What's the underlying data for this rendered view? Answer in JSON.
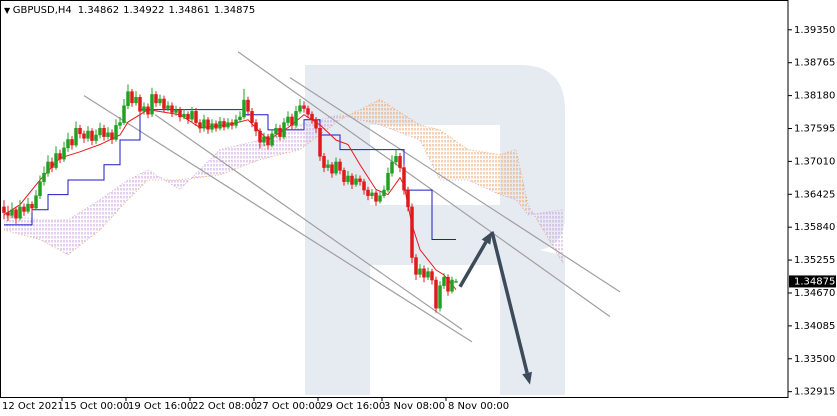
{
  "chart_data": {
    "type": "candlestick",
    "symbol": "GBPUSD,H4",
    "categories": [
      "12 Oct 2021",
      null,
      null,
      null,
      null,
      null,
      null,
      null,
      null,
      null,
      null,
      null,
      null,
      null,
      null,
      "15 Oct 00:00",
      null,
      null,
      null,
      null,
      null,
      null,
      null,
      null,
      null,
      null,
      null,
      null,
      null,
      null,
      null,
      "19 Oct 16:00",
      null,
      null,
      null,
      null,
      null,
      null,
      null,
      null,
      null,
      null,
      null,
      null,
      null,
      null,
      null,
      "22 Oct 08:00",
      null,
      null,
      null,
      null,
      null,
      null,
      null,
      null,
      null,
      null,
      null,
      null,
      null,
      null,
      null,
      "27 Oct 00:00",
      null,
      null,
      null,
      null,
      null,
      null,
      null,
      null,
      null,
      null,
      null,
      null,
      null,
      null,
      null,
      "29 Oct 16:00",
      null,
      null,
      null,
      null,
      null,
      null,
      null,
      null,
      null,
      null,
      null,
      null,
      null,
      null,
      null,
      "3 Nov 08:00",
      null,
      null,
      null,
      null,
      null,
      null,
      null,
      null,
      null,
      null,
      null,
      null,
      null,
      null,
      null,
      "8 Nov 00:00",
      null,
      null
    ],
    "ohlc": [
      [
        1.362,
        1.3632,
        1.3598,
        1.361
      ],
      [
        1.361,
        1.3622,
        1.3595,
        1.3605
      ],
      [
        1.3605,
        1.3628,
        1.36,
        1.3615
      ],
      [
        1.3615,
        1.362,
        1.359,
        1.36
      ],
      [
        1.36,
        1.3632,
        1.3596,
        1.362
      ],
      [
        1.362,
        1.3626,
        1.3604,
        1.3612
      ],
      [
        1.3612,
        1.3636,
        1.3608,
        1.3625
      ],
      [
        1.3625,
        1.363,
        1.361,
        1.3618
      ],
      [
        1.3618,
        1.365,
        1.3614,
        1.364
      ],
      [
        1.364,
        1.3676,
        1.3634,
        1.3665
      ],
      [
        1.3665,
        1.3692,
        1.3658,
        1.368
      ],
      [
        1.368,
        1.3712,
        1.3674,
        1.37
      ],
      [
        1.37,
        1.3708,
        1.3682,
        1.369
      ],
      [
        1.369,
        1.3728,
        1.3686,
        1.3715
      ],
      [
        1.3715,
        1.3722,
        1.3698,
        1.3705
      ],
      [
        1.3705,
        1.3736,
        1.37,
        1.3725
      ],
      [
        1.3725,
        1.3752,
        1.3718,
        1.374
      ],
      [
        1.374,
        1.3746,
        1.3722,
        1.373
      ],
      [
        1.373,
        1.3772,
        1.3726,
        1.376
      ],
      [
        1.376,
        1.3766,
        1.3742,
        1.375
      ],
      [
        1.375,
        1.3756,
        1.3734,
        1.3742
      ],
      [
        1.3742,
        1.3764,
        1.3736,
        1.3755
      ],
      [
        1.3755,
        1.376,
        1.373,
        1.3738
      ],
      [
        1.3738,
        1.3758,
        1.3732,
        1.3748
      ],
      [
        1.3748,
        1.377,
        1.3742,
        1.376
      ],
      [
        1.376,
        1.3766,
        1.3738,
        1.3745
      ],
      [
        1.3745,
        1.3762,
        1.374,
        1.3752
      ],
      [
        1.3752,
        1.3758,
        1.3732,
        1.374
      ],
      [
        1.374,
        1.3776,
        1.3736,
        1.3765
      ],
      [
        1.3765,
        1.378,
        1.3758,
        1.377
      ],
      [
        1.377,
        1.3812,
        1.3766,
        1.38
      ],
      [
        1.38,
        1.3838,
        1.3794,
        1.3825
      ],
      [
        1.3825,
        1.383,
        1.3798,
        1.3805
      ],
      [
        1.3805,
        1.3826,
        1.38,
        1.3815
      ],
      [
        1.3815,
        1.382,
        1.3782,
        1.379
      ],
      [
        1.379,
        1.3806,
        1.3784,
        1.3798
      ],
      [
        1.3798,
        1.3804,
        1.3778,
        1.3785
      ],
      [
        1.3785,
        1.3832,
        1.378,
        1.382
      ],
      [
        1.382,
        1.3826,
        1.3798,
        1.3805
      ],
      [
        1.3805,
        1.382,
        1.38,
        1.3812
      ],
      [
        1.3812,
        1.3818,
        1.3788,
        1.3795
      ],
      [
        1.3795,
        1.3808,
        1.379,
        1.38
      ],
      [
        1.38,
        1.3806,
        1.378,
        1.3788
      ],
      [
        1.3788,
        1.38,
        1.3782,
        1.3792
      ],
      [
        1.3792,
        1.3798,
        1.3772,
        1.378
      ],
      [
        1.378,
        1.3794,
        1.3776,
        1.3785
      ],
      [
        1.3785,
        1.379,
        1.3768,
        1.3776
      ],
      [
        1.3776,
        1.3798,
        1.377,
        1.379
      ],
      [
        1.379,
        1.3796,
        1.3764,
        1.377
      ],
      [
        1.377,
        1.3776,
        1.3752,
        1.376
      ],
      [
        1.376,
        1.3784,
        1.3754,
        1.3775
      ],
      [
        1.3775,
        1.378,
        1.375,
        1.3758
      ],
      [
        1.3758,
        1.3776,
        1.3752,
        1.3768
      ],
      [
        1.3768,
        1.3774,
        1.3754,
        1.376
      ],
      [
        1.376,
        1.378,
        1.3756,
        1.3772
      ],
      [
        1.3772,
        1.3778,
        1.3756,
        1.3762
      ],
      [
        1.3762,
        1.3778,
        1.3758,
        1.377
      ],
      [
        1.377,
        1.3776,
        1.3758,
        1.3765
      ],
      [
        1.3765,
        1.3784,
        1.376,
        1.3775
      ],
      [
        1.3775,
        1.379,
        1.377,
        1.378
      ],
      [
        1.378,
        1.383,
        1.3776,
        1.381
      ],
      [
        1.381,
        1.3816,
        1.3782,
        1.379
      ],
      [
        1.379,
        1.3796,
        1.3762,
        1.377
      ],
      [
        1.377,
        1.3776,
        1.3746,
        1.3755
      ],
      [
        1.3755,
        1.376,
        1.3724,
        1.3735
      ],
      [
        1.3735,
        1.3752,
        1.3728,
        1.3745
      ],
      [
        1.3745,
        1.375,
        1.3722,
        1.373
      ],
      [
        1.373,
        1.3758,
        1.3726,
        1.375
      ],
      [
        1.375,
        1.3768,
        1.3744,
        1.376
      ],
      [
        1.376,
        1.3766,
        1.3738,
        1.3745
      ],
      [
        1.3745,
        1.3778,
        1.374,
        1.377
      ],
      [
        1.377,
        1.379,
        1.3764,
        1.378
      ],
      [
        1.378,
        1.3786,
        1.3758,
        1.3765
      ],
      [
        1.3765,
        1.38,
        1.376,
        1.379
      ],
      [
        1.379,
        1.3812,
        1.3786,
        1.38
      ],
      [
        1.38,
        1.3808,
        1.3788,
        1.3795
      ],
      [
        1.3795,
        1.38,
        1.3778,
        1.3785
      ],
      [
        1.3785,
        1.379,
        1.3768,
        1.3775
      ],
      [
        1.3775,
        1.378,
        1.3752,
        1.376
      ],
      [
        1.376,
        1.3766,
        1.3702,
        1.371
      ],
      [
        1.371,
        1.3716,
        1.3682,
        1.369
      ],
      [
        1.369,
        1.3704,
        1.3684,
        1.3695
      ],
      [
        1.3695,
        1.37,
        1.3672,
        1.368
      ],
      [
        1.368,
        1.3708,
        1.3676,
        1.37
      ],
      [
        1.37,
        1.3706,
        1.3678,
        1.3685
      ],
      [
        1.3685,
        1.369,
        1.3658,
        1.3665
      ],
      [
        1.3665,
        1.3684,
        1.366,
        1.3675
      ],
      [
        1.3675,
        1.368,
        1.3652,
        1.366
      ],
      [
        1.366,
        1.3678,
        1.3656,
        1.367
      ],
      [
        1.367,
        1.3676,
        1.3658,
        1.3665
      ],
      [
        1.3665,
        1.367,
        1.3642,
        1.365
      ],
      [
        1.365,
        1.3656,
        1.3632,
        1.364
      ],
      [
        1.364,
        1.3652,
        1.3634,
        1.3645
      ],
      [
        1.3645,
        1.365,
        1.3622,
        1.363
      ],
      [
        1.363,
        1.3648,
        1.3626,
        1.364
      ],
      [
        1.364,
        1.3658,
        1.3636,
        1.365
      ],
      [
        1.365,
        1.369,
        1.3646,
        1.368
      ],
      [
        1.368,
        1.3712,
        1.3674,
        1.37
      ],
      [
        1.37,
        1.3722,
        1.3694,
        1.371
      ],
      [
        1.371,
        1.3716,
        1.3682,
        1.369
      ],
      [
        1.369,
        1.3696,
        1.3642,
        1.365
      ],
      [
        1.365,
        1.3656,
        1.3612,
        1.362
      ],
      [
        1.362,
        1.3626,
        1.352,
        1.353
      ],
      [
        1.353,
        1.3536,
        1.349,
        1.35
      ],
      [
        1.35,
        1.3518,
        1.3494,
        1.351
      ],
      [
        1.351,
        1.3516,
        1.3486,
        1.3495
      ],
      [
        1.3495,
        1.3512,
        1.349,
        1.3505
      ],
      [
        1.3505,
        1.351,
        1.3482,
        1.349
      ],
      [
        1.349,
        1.3496,
        1.3432,
        1.344
      ],
      [
        1.344,
        1.3488,
        1.3434,
        1.348
      ],
      [
        1.348,
        1.3502,
        1.3474,
        1.3495
      ],
      [
        1.3495,
        1.35,
        1.3462,
        1.347
      ],
      [
        1.347,
        1.3496,
        1.3466,
        1.349
      ],
      [
        1.34862,
        1.34922,
        1.34861,
        1.34875
      ]
    ],
    "up_color": "#22a022",
    "down_color": "#e0191b",
    "ylim": [
      1.3282,
      1.3988
    ],
    "yticks": [
      {
        "value": 1.3935,
        "label": "1.39350"
      },
      1.38765,
      {
        "value": 1.3818,
        "label": "1.38180"
      },
      1.37595,
      {
        "value": 1.3701,
        "label": "1.37010"
      },
      1.36425,
      {
        "value": 1.3584,
        "label": "1.35840"
      },
      1.35255,
      {
        "value": 1.3467,
        "label": "1.34670"
      },
      1.34085,
      {
        "value": 1.335,
        "label": "1.33500"
      },
      1.32915
    ],
    "tenkan": {
      "color": "#e8171b",
      "x": [
        0,
        4,
        9,
        14,
        19,
        24,
        29,
        31,
        36,
        44,
        49,
        56,
        61,
        66,
        71,
        75,
        79,
        83,
        86,
        89,
        93,
        96,
        99,
        100,
        102,
        104,
        108,
        110,
        113
      ],
      "values": [
        1.3606,
        1.3624,
        1.3668,
        1.3707,
        1.3718,
        1.3731,
        1.3748,
        1.3771,
        1.3793,
        1.3784,
        1.3761,
        1.3766,
        1.3775,
        1.3739,
        1.3761,
        1.3784,
        1.3766,
        1.3739,
        1.3731,
        1.3695,
        1.3651,
        1.3642,
        1.3672,
        1.3659,
        1.3588,
        1.3544,
        1.3508,
        1.3499,
        1.3473
      ]
    },
    "kijun": {
      "color": "#1a1ac8",
      "x": [
        0,
        7,
        7,
        11,
        11,
        16,
        16,
        25,
        25,
        29,
        29,
        34,
        34,
        60,
        60,
        66,
        66,
        75,
        75,
        79,
        79,
        84,
        84,
        100,
        100,
        107,
        107,
        113
      ],
      "values": [
        1.3588,
        1.3588,
        1.3615,
        1.3615,
        1.3642,
        1.3642,
        1.3668,
        1.3668,
        1.3695,
        1.3695,
        1.3739,
        1.3739,
        1.3793,
        1.3793,
        1.3784,
        1.3784,
        1.3757,
        1.3757,
        1.3775,
        1.3775,
        1.3748,
        1.3748,
        1.3722,
        1.3722,
        1.365,
        1.365,
        1.3562,
        1.3562
      ]
    },
    "cloud": {
      "up_color": "#f0a060",
      "down_color": "#c8a0dc",
      "x": [
        0,
        9,
        16,
        24,
        31,
        36,
        44,
        54,
        64,
        74,
        84,
        94,
        104,
        109,
        116,
        124,
        128,
        131,
        140
      ],
      "span_a": [
        1.3579,
        1.3562,
        1.3535,
        1.3579,
        1.3633,
        1.3668,
        1.3668,
        1.3677,
        1.3704,
        1.3722,
        1.3775,
        1.3811,
        1.3766,
        1.3757,
        1.3722,
        1.3713,
        1.3722,
        1.3624,
        1.3517
      ],
      "span_b": [
        1.3606,
        1.3597,
        1.3597,
        1.3633,
        1.3668,
        1.3686,
        1.3651,
        1.3722,
        1.3739,
        1.3766,
        1.3784,
        1.3766,
        1.3739,
        1.3668,
        1.3668,
        1.3642,
        1.3633,
        1.3606,
        1.3615
      ]
    },
    "trend_lines": {
      "color": "#a0a0a0",
      "lines": [
        {
          "x": [
            58.5,
            151.5
          ],
          "y": [
            1.3896,
            1.3425
          ]
        },
        {
          "x": [
            71.5,
            154
          ],
          "y": [
            1.385,
            1.3469
          ]
        },
        {
          "x": [
            20,
            117
          ],
          "y": [
            1.3818,
            1.338
          ]
        },
        {
          "x": [
            37.8,
            114.5
          ],
          "y": [
            1.3784,
            1.3402
          ]
        }
      ]
    },
    "forecast": {
      "color": "#3c4a5a",
      "x": [
        114,
        122,
        131.5
      ],
      "y": [
        1.3478,
        1.3576,
        1.3304
      ]
    }
  }
}
